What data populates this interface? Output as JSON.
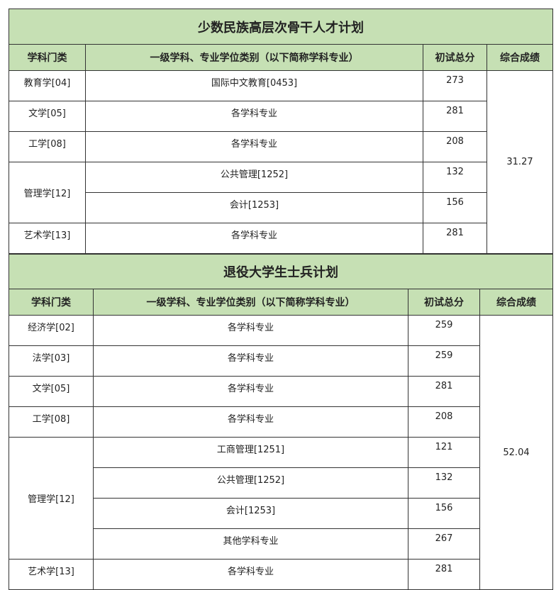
{
  "table1": {
    "title": "少数民族高层次骨干人才计划",
    "headers": [
      "学科门类",
      "一级学科、专业学位类别（以下简称学科专业）",
      "初试总分",
      "综合成绩"
    ],
    "rows": [
      {
        "category": "教育学[04]",
        "major": "国际中文教育[0453]",
        "score": "273"
      },
      {
        "category": "文学[05]",
        "major": "各学科专业",
        "score": "281"
      },
      {
        "category": "工学[08]",
        "major": "各学科专业",
        "score": "208"
      },
      {
        "category": "管理学[12]",
        "major": "公共管理[1252]",
        "score": "132"
      },
      {
        "category": "",
        "major": "会计[1253]",
        "score": "156"
      },
      {
        "category": "艺术学[13]",
        "major": "各学科专业",
        "score": "281"
      }
    ],
    "composite": "31.27"
  },
  "table2": {
    "title": "退役大学生士兵计划",
    "headers": [
      "学科门类",
      "一级学科、专业学位类别（以下简称学科专业）",
      "初试总分",
      "综合成绩"
    ],
    "rows": [
      {
        "category": "经济学[02]",
        "major": "各学科专业",
        "score": "259"
      },
      {
        "category": "法学[03]",
        "major": "各学科专业",
        "score": "259"
      },
      {
        "category": "文学[05]",
        "major": "各学科专业",
        "score": "281"
      },
      {
        "category": "工学[08]",
        "major": "各学科专业",
        "score": "208"
      },
      {
        "category": "管理学[12]",
        "major": "工商管理[1251]",
        "score": "121"
      },
      {
        "category": "",
        "major": "公共管理[1252]",
        "score": "132"
      },
      {
        "category": "",
        "major": "会计[1253]",
        "score": "156"
      },
      {
        "category": "",
        "major": "其他学科专业",
        "score": "267"
      },
      {
        "category": "艺术学[13]",
        "major": "各学科专业",
        "score": "281"
      }
    ],
    "composite": "52.04"
  }
}
